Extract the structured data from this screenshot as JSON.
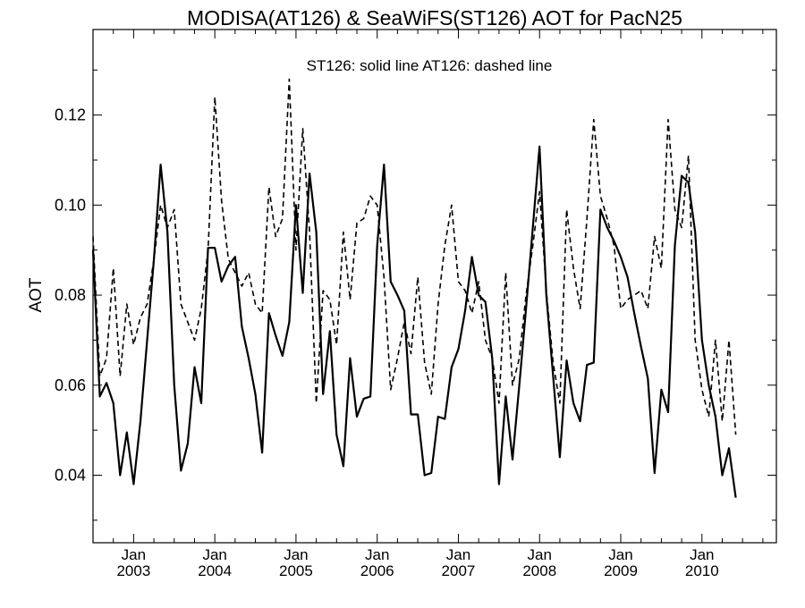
{
  "chart_data": {
    "type": "line",
    "title": "MODISA(AT126) & SeaWiFS(ST126)  AOT for PacN25",
    "annotation": "ST126: solid line   AT126: dashed line",
    "ylabel": "AOT",
    "xlabel": "",
    "ylim": [
      0.025,
      0.139
    ],
    "xlim": [
      "2002-07",
      "2010-12"
    ],
    "y_ticks": [
      0.04,
      0.06,
      0.08,
      0.1,
      0.12
    ],
    "y_tick_labels": [
      "0.04",
      "0.06",
      "0.08",
      "0.10",
      "0.12"
    ],
    "x_ticks": [
      {
        "month_label": "Jan",
        "year_label": "2003",
        "date": "2003-01"
      },
      {
        "month_label": "Jan",
        "year_label": "2004",
        "date": "2004-01"
      },
      {
        "month_label": "Jan",
        "year_label": "2005",
        "date": "2005-01"
      },
      {
        "month_label": "Jan",
        "year_label": "2006",
        "date": "2006-01"
      },
      {
        "month_label": "Jan",
        "year_label": "2007",
        "date": "2007-01"
      },
      {
        "month_label": "Jan",
        "year_label": "2008",
        "date": "2008-01"
      },
      {
        "month_label": "Jan",
        "year_label": "2009",
        "date": "2009-01"
      },
      {
        "month_label": "Jan",
        "year_label": "2010",
        "date": "2010-01"
      }
    ],
    "grid": false,
    "series": [
      {
        "style": "solid",
        "points": [
          [
            "2002-07",
            0.09
          ],
          [
            "2002-08",
            0.0575
          ],
          [
            "2002-09",
            0.0605
          ],
          [
            "2002-10",
            0.056
          ],
          [
            "2002-11",
            0.04
          ],
          [
            "2002-12",
            0.0495
          ],
          [
            "2003-01",
            0.038
          ],
          [
            "2003-02",
            0.052
          ],
          [
            "2003-03",
            0.07
          ],
          [
            "2003-04",
            0.088
          ],
          [
            "2003-05",
            0.109
          ],
          [
            "2003-06",
            0.094
          ],
          [
            "2003-07",
            0.06
          ],
          [
            "2003-08",
            0.041
          ],
          [
            "2003-09",
            0.047
          ],
          [
            "2003-10",
            0.064
          ],
          [
            "2003-11",
            0.056
          ],
          [
            "2003-12",
            0.0905
          ],
          [
            "2004-01",
            0.0905
          ],
          [
            "2004-02",
            0.083
          ],
          [
            "2004-03",
            0.0865
          ],
          [
            "2004-04",
            0.0885
          ],
          [
            "2004-05",
            0.073
          ],
          [
            "2004-06",
            0.066
          ],
          [
            "2004-07",
            0.058
          ],
          [
            "2004-08",
            0.045
          ],
          [
            "2004-09",
            0.076
          ],
          [
            "2004-10",
            0.071
          ],
          [
            "2004-11",
            0.0665
          ],
          [
            "2004-12",
            0.074
          ],
          [
            "2005-01",
            0.1
          ],
          [
            "2005-02",
            0.0805
          ],
          [
            "2005-03",
            0.107
          ],
          [
            "2005-04",
            0.094
          ],
          [
            "2005-05",
            0.058
          ],
          [
            "2005-06",
            0.072
          ],
          [
            "2005-07",
            0.049
          ],
          [
            "2005-08",
            0.042
          ],
          [
            "2005-09",
            0.066
          ],
          [
            "2005-10",
            0.053
          ],
          [
            "2005-11",
            0.057
          ],
          [
            "2005-12",
            0.0575
          ],
          [
            "2006-01",
            0.091
          ],
          [
            "2006-02",
            0.109
          ],
          [
            "2006-03",
            0.083
          ],
          [
            "2006-04",
            0.08
          ],
          [
            "2006-05",
            0.0765
          ],
          [
            "2006-06",
            0.0535
          ],
          [
            "2006-07",
            0.0535
          ],
          [
            "2006-08",
            0.04
          ],
          [
            "2006-09",
            0.0405
          ],
          [
            "2006-10",
            0.053
          ],
          [
            "2006-11",
            0.0525
          ],
          [
            "2006-12",
            0.064
          ],
          [
            "2007-01",
            0.068
          ],
          [
            "2007-02",
            0.0765
          ],
          [
            "2007-03",
            0.0885
          ],
          [
            "2007-04",
            0.08
          ],
          [
            "2007-05",
            0.0785
          ],
          [
            "2007-06",
            0.066
          ],
          [
            "2007-07",
            0.038
          ],
          [
            "2007-08",
            0.0575
          ],
          [
            "2007-09",
            0.0435
          ],
          [
            "2007-10",
            0.06
          ],
          [
            "2007-11",
            0.077
          ],
          [
            "2007-12",
            0.095
          ],
          [
            "2008-01",
            0.113
          ],
          [
            "2008-02",
            0.08
          ],
          [
            "2008-03",
            0.062
          ],
          [
            "2008-04",
            0.044
          ],
          [
            "2008-05",
            0.0655
          ],
          [
            "2008-06",
            0.056
          ],
          [
            "2008-07",
            0.052
          ],
          [
            "2008-08",
            0.0645
          ],
          [
            "2008-09",
            0.065
          ],
          [
            "2008-10",
            0.099
          ],
          [
            "2008-11",
            0.095
          ],
          [
            "2008-12",
            0.092
          ],
          [
            "2009-01",
            0.0885
          ],
          [
            "2009-02",
            0.084
          ],
          [
            "2009-03",
            0.076
          ],
          [
            "2009-04",
            0.0685
          ],
          [
            "2009-05",
            0.0615
          ],
          [
            "2009-06",
            0.0405
          ],
          [
            "2009-07",
            0.059
          ],
          [
            "2009-08",
            0.054
          ],
          [
            "2009-09",
            0.091
          ],
          [
            "2009-10",
            0.1065
          ],
          [
            "2009-11",
            0.105
          ],
          [
            "2009-12",
            0.094
          ],
          [
            "2010-01",
            0.07
          ],
          [
            "2010-02",
            0.06
          ],
          [
            "2010-03",
            0.053
          ],
          [
            "2010-04",
            0.04
          ],
          [
            "2010-05",
            0.046
          ],
          [
            "2010-06",
            0.035
          ]
        ]
      },
      {
        "style": "dashed",
        "points": [
          [
            "2002-07",
            0.093
          ],
          [
            "2002-08",
            0.062
          ],
          [
            "2002-09",
            0.066
          ],
          [
            "2002-10",
            0.086
          ],
          [
            "2002-11",
            0.062
          ],
          [
            "2002-12",
            0.078
          ],
          [
            "2003-01",
            0.069
          ],
          [
            "2003-02",
            0.075
          ],
          [
            "2003-03",
            0.078
          ],
          [
            "2003-04",
            0.088
          ],
          [
            "2003-05",
            0.1
          ],
          [
            "2003-06",
            0.095
          ],
          [
            "2003-07",
            0.099
          ],
          [
            "2003-08",
            0.078
          ],
          [
            "2003-09",
            0.074
          ],
          [
            "2003-10",
            0.07
          ],
          [
            "2003-11",
            0.077
          ],
          [
            "2003-12",
            0.09
          ],
          [
            "2004-01",
            0.124
          ],
          [
            "2004-02",
            0.101
          ],
          [
            "2004-03",
            0.088
          ],
          [
            "2004-04",
            0.085
          ],
          [
            "2004-05",
            0.082
          ],
          [
            "2004-06",
            0.085
          ],
          [
            "2004-07",
            0.078
          ],
          [
            "2004-08",
            0.076
          ],
          [
            "2004-09",
            0.104
          ],
          [
            "2004-10",
            0.093
          ],
          [
            "2004-11",
            0.097
          ],
          [
            "2004-12",
            0.128
          ],
          [
            "2005-01",
            0.09
          ],
          [
            "2005-02",
            0.117
          ],
          [
            "2005-03",
            0.094
          ],
          [
            "2005-04",
            0.056
          ],
          [
            "2005-05",
            0.081
          ],
          [
            "2005-06",
            0.079
          ],
          [
            "2005-07",
            0.069
          ],
          [
            "2005-08",
            0.094
          ],
          [
            "2005-09",
            0.079
          ],
          [
            "2005-10",
            0.096
          ],
          [
            "2005-11",
            0.097
          ],
          [
            "2005-12",
            0.102
          ],
          [
            "2006-01",
            0.1
          ],
          [
            "2006-02",
            0.084
          ],
          [
            "2006-03",
            0.059
          ],
          [
            "2006-04",
            0.066
          ],
          [
            "2006-05",
            0.074
          ],
          [
            "2006-06",
            0.067
          ],
          [
            "2006-07",
            0.084
          ],
          [
            "2006-08",
            0.065
          ],
          [
            "2006-09",
            0.058
          ],
          [
            "2006-10",
            0.078
          ],
          [
            "2006-11",
            0.091
          ],
          [
            "2006-12",
            0.1
          ],
          [
            "2007-01",
            0.083
          ],
          [
            "2007-02",
            0.081
          ],
          [
            "2007-03",
            0.076
          ],
          [
            "2007-04",
            0.083
          ],
          [
            "2007-05",
            0.07
          ],
          [
            "2007-06",
            0.066
          ],
          [
            "2007-07",
            0.056
          ],
          [
            "2007-08",
            0.085
          ],
          [
            "2007-09",
            0.06
          ],
          [
            "2007-10",
            0.066
          ],
          [
            "2007-11",
            0.08
          ],
          [
            "2007-12",
            0.091
          ],
          [
            "2008-01",
            0.103
          ],
          [
            "2008-02",
            0.081
          ],
          [
            "2008-03",
            0.065
          ],
          [
            "2008-04",
            0.056
          ],
          [
            "2008-05",
            0.099
          ],
          [
            "2008-06",
            0.086
          ],
          [
            "2008-07",
            0.077
          ],
          [
            "2008-08",
            0.097
          ],
          [
            "2008-09",
            0.119
          ],
          [
            "2008-10",
            0.102
          ],
          [
            "2008-11",
            0.097
          ],
          [
            "2008-12",
            0.091
          ],
          [
            "2009-01",
            0.077
          ],
          [
            "2009-02",
            0.079
          ],
          [
            "2009-03",
            0.08
          ],
          [
            "2009-04",
            0.081
          ],
          [
            "2009-05",
            0.077
          ],
          [
            "2009-06",
            0.093
          ],
          [
            "2009-07",
            0.086
          ],
          [
            "2009-08",
            0.119
          ],
          [
            "2009-09",
            0.099
          ],
          [
            "2009-10",
            0.095
          ],
          [
            "2009-11",
            0.111
          ],
          [
            "2009-12",
            0.07
          ],
          [
            "2010-01",
            0.059
          ],
          [
            "2010-02",
            0.053
          ],
          [
            "2010-03",
            0.07
          ],
          [
            "2010-04",
            0.052
          ],
          [
            "2010-05",
            0.07
          ],
          [
            "2010-06",
            0.049
          ]
        ]
      }
    ]
  }
}
